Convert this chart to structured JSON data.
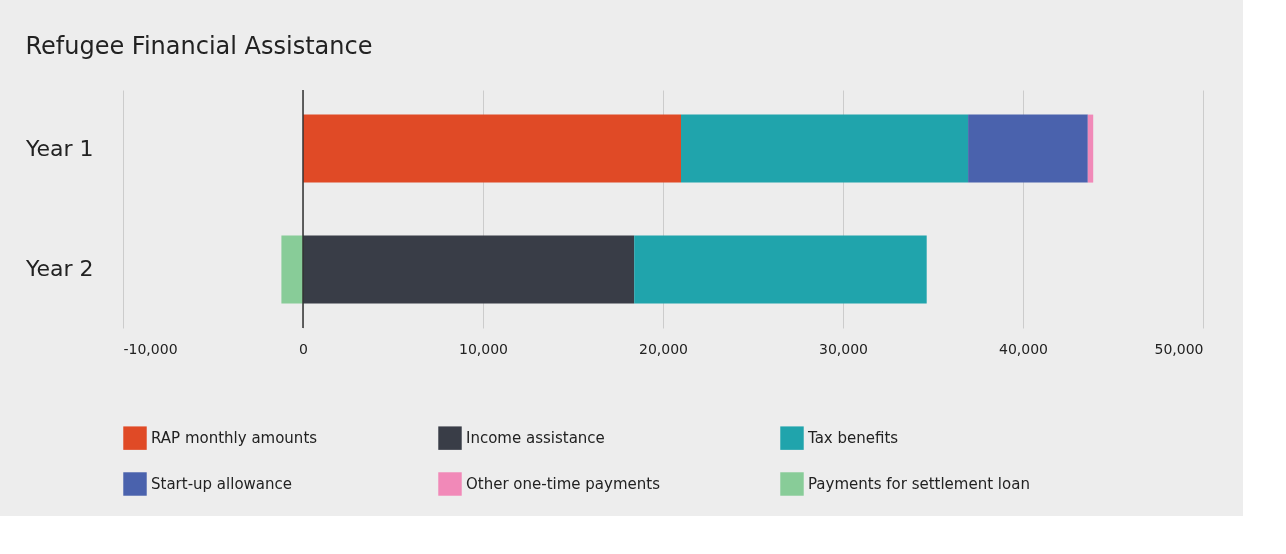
{
  "chart_data": {
    "type": "bar",
    "orientation": "horizontal",
    "stacked": true,
    "title": "Refugee Financial Assistance",
    "categories": [
      "Year 1",
      "Year 2"
    ],
    "series": [
      {
        "name": "RAP monthly amounts",
        "color": "#e04a26",
        "values": [
          21000,
          null
        ]
      },
      {
        "name": "Income assistance",
        "color": "#393d47",
        "values": [
          null,
          18400
        ]
      },
      {
        "name": "Tax benefits",
        "color": "#20a4ac",
        "values": [
          15950,
          16250
        ]
      },
      {
        "name": "Start-up allowance",
        "color": "#4a62ad",
        "values": [
          6650,
          null
        ]
      },
      {
        "name": "Other one-time payments",
        "color": "#f189b8",
        "values": [
          300,
          null
        ]
      },
      {
        "name": "Payments for settlement loan",
        "color": "#88cc98",
        "values": [
          null,
          -1200
        ]
      }
    ],
    "xlim": [
      -10000,
      50000
    ],
    "xticks": [
      {
        "value": -10000,
        "label": "-10,000"
      },
      0,
      {
        "value": 10000,
        "label": "10,000"
      },
      {
        "value": 20000,
        "label": "20,000"
      },
      {
        "value": 30000,
        "label": "30,000"
      },
      {
        "value": 40000,
        "label": "40,000"
      },
      {
        "value": 50000,
        "label": "50,000"
      }
    ],
    "ref_lines": [
      {
        "axis": "x",
        "value": 0,
        "color": "#333333"
      }
    ],
    "grid": "x",
    "legend": "bottom"
  }
}
